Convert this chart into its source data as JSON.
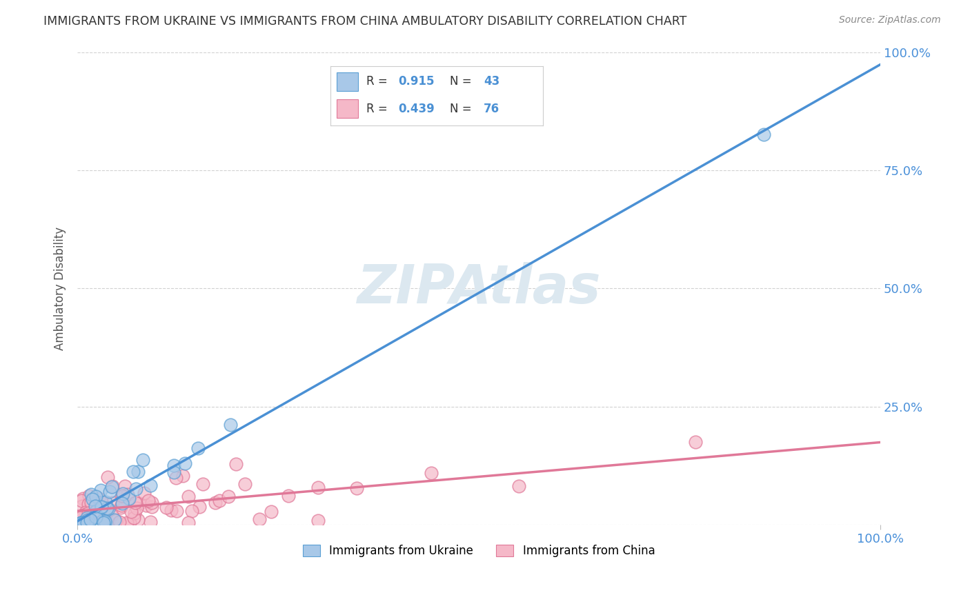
{
  "title": "IMMIGRANTS FROM UKRAINE VS IMMIGRANTS FROM CHINA AMBULATORY DISABILITY CORRELATION CHART",
  "source": "Source: ZipAtlas.com",
  "ylabel": "Ambulatory Disability",
  "ukraine_R": 0.915,
  "ukraine_N": 43,
  "china_R": 0.439,
  "china_N": 76,
  "ukraine_color": "#a8c8e8",
  "ukraine_edge_color": "#5a9fd4",
  "ukraine_line_color": "#4a90d4",
  "china_color": "#f5b8c8",
  "china_edge_color": "#e07898",
  "china_line_color": "#e07898",
  "background_color": "#ffffff",
  "watermark_text": "ZIPAtlas",
  "watermark_color": "#dce8f0",
  "legend_ukraine": "Immigrants from Ukraine",
  "legend_china": "Immigrants from China",
  "tick_color": "#4a90d9",
  "grid_color": "#cccccc",
  "title_color": "#333333",
  "source_color": "#888888",
  "ylabel_color": "#555555"
}
